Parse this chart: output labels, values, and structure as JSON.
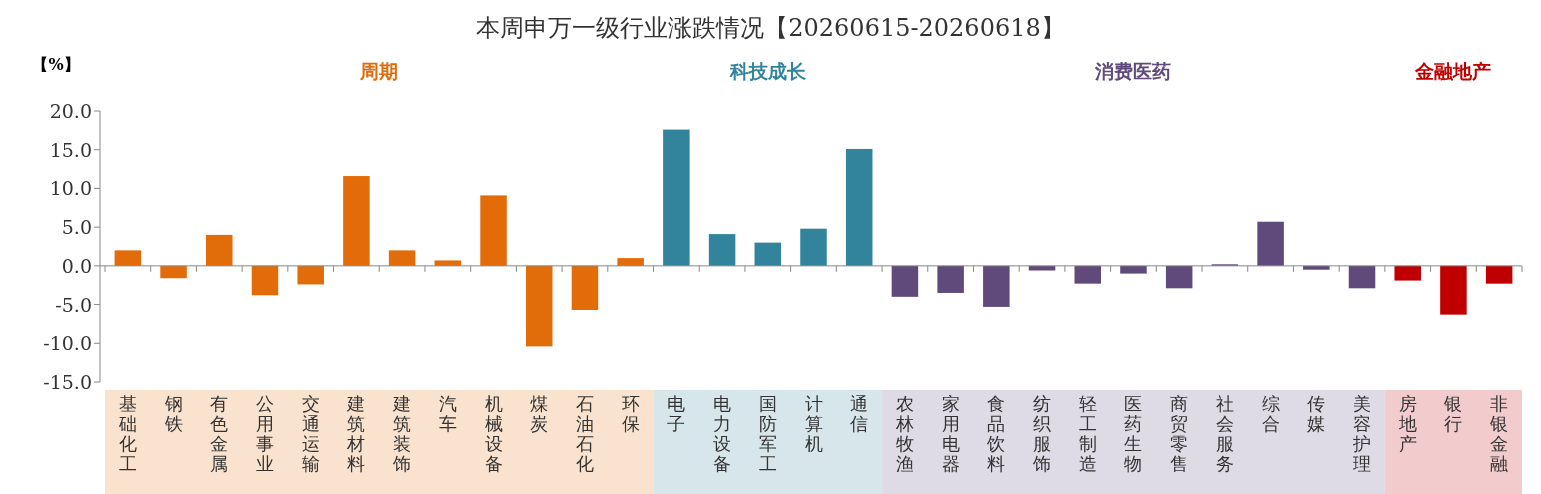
{
  "chart_data": {
    "type": "bar",
    "title": "本周申万一级行业涨跌情况【20260615-20260618】",
    "ylabel": "【%】",
    "annotations": [
      "周期",
      "科技成长",
      "消费医药",
      "金融地产"
    ],
    "categories": [
      "基础化工",
      "钢铁",
      "有色金属",
      "公用事业",
      "交通运输",
      "建筑材料",
      "建筑装饰",
      "汽车",
      "机械设备",
      "煤炭",
      "石油石化",
      "环保",
      "电子",
      "电力设备",
      "国防军工",
      "计算机",
      "通信",
      "农林牧渔",
      "家用电器",
      "食品饮料",
      "纺织服饰",
      "轻工制造",
      "医药生物",
      "商贸零售",
      "社会服务",
      "综合",
      "传媒",
      "美容护理",
      "房地产",
      "银行",
      "非银金融"
    ],
    "values": [
      2.0,
      -1.6,
      4.0,
      -3.8,
      -2.4,
      11.6,
      2.0,
      0.7,
      9.1,
      -10.4,
      -5.7,
      1.0,
      17.6,
      4.1,
      3.0,
      4.8,
      15.1,
      -4.0,
      -3.5,
      -5.3,
      -0.6,
      -2.3,
      -1.0,
      -2.9,
      0.2,
      5.7,
      -0.5,
      -2.9,
      -1.9,
      -6.3,
      -2.3
    ],
    "colors": [
      "#e36c0a",
      "#e36c0a",
      "#e36c0a",
      "#e36c0a",
      "#e36c0a",
      "#e36c0a",
      "#e36c0a",
      "#e36c0a",
      "#e36c0a",
      "#e36c0a",
      "#e36c0a",
      "#e36c0a",
      "#31849b",
      "#31849b",
      "#31849b",
      "#31849b",
      "#31849b",
      "#604a7b",
      "#604a7b",
      "#604a7b",
      "#604a7b",
      "#604a7b",
      "#604a7b",
      "#604a7b",
      "#604a7b",
      "#604a7b",
      "#604a7b",
      "#604a7b",
      "#c00000",
      "#c00000",
      "#c00000"
    ],
    "ylim": [
      -15,
      20
    ],
    "yticks": [
      {
        "value": -15,
        "label": "-15.0"
      },
      {
        "value": -10,
        "label": "-10.0"
      },
      {
        "value": -5,
        "label": "-5.0"
      },
      {
        "value": 0,
        "label": "0.0"
      },
      {
        "value": 5,
        "label": "5.0"
      },
      {
        "value": 10,
        "label": "10.0"
      },
      {
        "value": 15,
        "label": "15.0"
      },
      {
        "value": 20,
        "label": "20.0"
      }
    ]
  }
}
